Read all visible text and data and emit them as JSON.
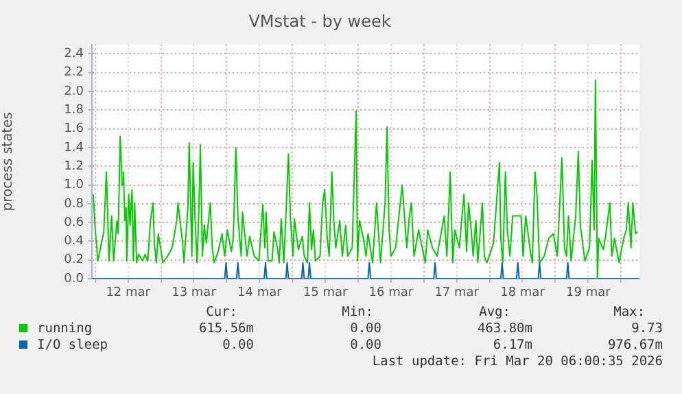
{
  "chart_data": {
    "type": "line",
    "title": "VMstat - by week",
    "ylabel": "process states",
    "xlim": [
      "2026-03-11T22:48",
      "2026-03-20T06:43"
    ],
    "xticks": [
      {
        "value": "2026-03-12T00:00",
        "label": null
      },
      {
        "value": "2026-03-12T12:00",
        "label": "12 mar"
      },
      {
        "value": "2026-03-13T00:00",
        "label": null
      },
      {
        "value": "2026-03-13T12:00",
        "label": "13 mar"
      },
      {
        "value": "2026-03-14T00:00",
        "label": null
      },
      {
        "value": "2026-03-14T12:00",
        "label": "14 mar"
      },
      {
        "value": "2026-03-15T00:00",
        "label": null
      },
      {
        "value": "2026-03-15T12:00",
        "label": "15 mar"
      },
      {
        "value": "2026-03-16T00:00",
        "label": null
      },
      {
        "value": "2026-03-16T12:00",
        "label": "16 mar"
      },
      {
        "value": "2026-03-17T00:00",
        "label": null
      },
      {
        "value": "2026-03-17T12:00",
        "label": "17 mar"
      },
      {
        "value": "2026-03-18T00:00",
        "label": null
      },
      {
        "value": "2026-03-18T12:00",
        "label": "18 mar"
      },
      {
        "value": "2026-03-19T00:00",
        "label": null
      },
      {
        "value": "2026-03-19T12:00",
        "label": "19 mar"
      },
      {
        "value": "2026-03-20T00:00",
        "label": null
      }
    ],
    "ylim": [
      0,
      2.5
    ],
    "yticks": [
      {
        "value": 0,
        "label": "0.0"
      },
      0.2,
      0.4,
      0.6,
      0.8,
      {
        "value": 1,
        "label": "1.0"
      },
      1.2,
      1.4,
      1.6,
      1.8,
      {
        "value": 2,
        "label": "2.0"
      },
      2.2,
      2.4
    ],
    "grid": true,
    "legend": "bottom",
    "marker": "none",
    "line_style": "solid",
    "series": [
      {
        "name": "running",
        "color": "#00cc00",
        "x": [
          "2026-03-11T23:17",
          "2026-03-12T00:00",
          "2026-03-12T00:58",
          "2026-03-12T03:07",
          "2026-03-12T04:05",
          "2026-03-12T05:02",
          "2026-03-12T06:00",
          "2026-03-12T06:43",
          "2026-03-12T07:55",
          "2026-03-12T08:24",
          "2026-03-12T09:07",
          "2026-03-12T09:50",
          "2026-03-12T10:19",
          "2026-03-12T10:48",
          "2026-03-12T11:17",
          "2026-03-12T11:31",
          "2026-03-12T12:14",
          "2026-03-12T12:43",
          "2026-03-12T13:26",
          "2026-03-12T13:55",
          "2026-03-12T14:24",
          "2026-03-12T15:07",
          "2026-03-12T15:50",
          "2026-03-12T17:17",
          "2026-03-12T18:14",
          "2026-03-12T19:12",
          "2026-03-12T20:10",
          "2026-03-12T21:07",
          "2026-03-12T21:36",
          "2026-03-12T22:19",
          "2026-03-12T23:02",
          "2026-03-13T00:43",
          "2026-03-13T02:24",
          "2026-03-13T04:05",
          "2026-03-13T05:46",
          "2026-03-13T06:14",
          "2026-03-13T07:55",
          "2026-03-13T08:24",
          "2026-03-13T09:50",
          "2026-03-13T10:19",
          "2026-03-13T11:17",
          "2026-03-13T11:46",
          "2026-03-13T12:29",
          "2026-03-13T13:12",
          "2026-03-13T13:55",
          "2026-03-13T14:24",
          "2026-03-13T15:07",
          "2026-03-13T15:50",
          "2026-03-13T16:34",
          "2026-03-13T18:00",
          "2026-03-13T18:43",
          "2026-03-13T19:26",
          "2026-03-13T20:53",
          "2026-03-13T22:19",
          "2026-03-13T23:17",
          "2026-03-14T00:14",
          "2026-03-14T01:41",
          "2026-03-14T02:24",
          "2026-03-14T03:22",
          "2026-03-14T04:05",
          "2026-03-14T05:17",
          "2026-03-14T05:46",
          "2026-03-14T07:26",
          "2026-03-14T08:24",
          "2026-03-14T10:05",
          "2026-03-14T11:46",
          "2026-03-14T13:12",
          "2026-03-14T13:55",
          "2026-03-14T14:24",
          "2026-03-14T15:07",
          "2026-03-14T16:34",
          "2026-03-14T17:17",
          "2026-03-14T18:29",
          "2026-03-14T19:12",
          "2026-03-14T19:55",
          "2026-03-14T20:53",
          "2026-03-14T22:34",
          "2026-03-14T23:17",
          "2026-03-15T00:14",
          "2026-03-15T00:43",
          "2026-03-15T02:10",
          "2026-03-15T03:36",
          "2026-03-15T04:19",
          "2026-03-15T05:31",
          "2026-03-15T06:14",
          "2026-03-15T06:58",
          "2026-03-15T07:41",
          "2026-03-15T08:24",
          "2026-03-15T10:05",
          "2026-03-15T11:02",
          "2026-03-15T11:46",
          "2026-03-15T12:43",
          "2026-03-15T13:26",
          "2026-03-15T14:24",
          "2026-03-15T15:07",
          "2026-03-15T15:50",
          "2026-03-15T17:17",
          "2026-03-15T18:14",
          "2026-03-15T19:26",
          "2026-03-15T20:10",
          "2026-03-15T21:50",
          "2026-03-15T23:17",
          "2026-03-15T23:46",
          "2026-03-16T00:29",
          "2026-03-16T01:55",
          "2026-03-16T02:53",
          "2026-03-16T03:36",
          "2026-03-16T05:17",
          "2026-03-16T06:43",
          "2026-03-16T08:10",
          "2026-03-16T09:50",
          "2026-03-16T10:34",
          "2026-03-16T11:17",
          "2026-03-16T12:00",
          "2026-03-16T13:41",
          "2026-03-16T16:05",
          "2026-03-16T17:46",
          "2026-03-16T18:43",
          "2026-03-16T19:26",
          "2026-03-16T20:24",
          "2026-03-16T22:05",
          "2026-03-17T00:29",
          "2026-03-17T01:26",
          "2026-03-17T03:07",
          "2026-03-17T04:48",
          "2026-03-17T07:26",
          "2026-03-17T08:24",
          "2026-03-17T09:36",
          "2026-03-17T10:34",
          "2026-03-17T11:17",
          "2026-03-17T12:58",
          "2026-03-17T13:55",
          "2026-03-17T14:38",
          "2026-03-17T15:36",
          "2026-03-17T16:19",
          "2026-03-17T17:17",
          "2026-03-17T18:00",
          "2026-03-17T18:58",
          "2026-03-17T19:41",
          "2026-03-17T21:22",
          "2026-03-17T22:05",
          "2026-03-17T23:02",
          "2026-03-18T01:26",
          "2026-03-18T03:36",
          "2026-03-18T04:05",
          "2026-03-18T04:48",
          "2026-03-18T05:46",
          "2026-03-18T06:29",
          "2026-03-18T07:26",
          "2026-03-18T08:24",
          "2026-03-18T09:50",
          "2026-03-18T11:31",
          "2026-03-18T12:14",
          "2026-03-18T13:12",
          "2026-03-18T14:53",
          "2026-03-18T15:36",
          "2026-03-18T16:34",
          "2026-03-18T17:17",
          "2026-03-18T18:14",
          "2026-03-18T19:55",
          "2026-03-18T21:36",
          "2026-03-18T23:17",
          "2026-03-19T00:43",
          "2026-03-19T02:24",
          "2026-03-19T03:22",
          "2026-03-19T04:05",
          "2026-03-19T04:48",
          "2026-03-19T05:46",
          "2026-03-19T07:26",
          "2026-03-19T08:24",
          "2026-03-19T09:07",
          "2026-03-19T10:48",
          "2026-03-19T12:29",
          "2026-03-19T13:26",
          "2026-03-19T14:10",
          "2026-03-19T14:38",
          "2026-03-19T15:22",
          "2026-03-19T15:50",
          "2026-03-19T17:31",
          "2026-03-19T18:14",
          "2026-03-19T19:55",
          "2026-03-19T20:38",
          "2026-03-19T21:36",
          "2026-03-19T23:17",
          "2026-03-20T00:58",
          "2026-03-20T01:55",
          "2026-03-20T02:38",
          "2026-03-20T03:36",
          "2026-03-20T04:19",
          "2026-03-20T05:17",
          "2026-03-20T06:00"
        ],
        "values": [
          0.9,
          0.52,
          0.19,
          0.5,
          1.14,
          0.19,
          0.67,
          0.19,
          0.62,
          0.48,
          1.52,
          1.0,
          1.14,
          0.62,
          0.76,
          0.19,
          0.9,
          0.57,
          0.95,
          0.19,
          0.81,
          0.17,
          0.26,
          0.19,
          0.26,
          0.19,
          0.62,
          0.81,
          0.38,
          0.17,
          0.48,
          0.17,
          0.24,
          0.33,
          0.62,
          0.81,
          0.38,
          0.17,
          0.76,
          1.45,
          0.24,
          1.24,
          0.62,
          0.17,
          0.81,
          1.43,
          0.24,
          0.57,
          0.38,
          0.81,
          0.33,
          0.17,
          0.29,
          0.48,
          0.24,
          0.52,
          0.29,
          0.43,
          1.4,
          0.67,
          0.24,
          0.71,
          0.24,
          0.45,
          0.24,
          0.19,
          0.79,
          0.33,
          0.71,
          0.19,
          0.19,
          0.5,
          0.33,
          0.17,
          0.64,
          0.17,
          1.33,
          0.64,
          0.24,
          0.64,
          0.31,
          0.45,
          0.24,
          0.17,
          0.81,
          0.31,
          0.52,
          0.19,
          0.24,
          0.81,
          0.95,
          0.43,
          0.24,
          1.14,
          0.62,
          0.33,
          0.62,
          0.24,
          0.57,
          0.24,
          0.33,
          1.79,
          0.19,
          0.62,
          0.43,
          0.24,
          0.48,
          0.17,
          0.81,
          0.17,
          0.81,
          1.62,
          0.52,
          0.24,
          0.33,
          1.0,
          0.33,
          0.67,
          0.81,
          0.24,
          0.52,
          0.17,
          0.52,
          0.33,
          0.24,
          0.67,
          0.24,
          1.14,
          0.17,
          0.52,
          0.33,
          0.67,
          0.9,
          0.29,
          0.81,
          0.52,
          0.24,
          0.62,
          0.17,
          0.81,
          0.24,
          0.17,
          0.38,
          1.24,
          0.43,
          0.17,
          1.14,
          0.52,
          0.24,
          0.67,
          0.67,
          0.67,
          0.24,
          0.67,
          0.29,
          0.17,
          1.14,
          0.9,
          0.17,
          0.24,
          0.43,
          0.48,
          0.24,
          1.29,
          0.33,
          0.24,
          0.67,
          0.19,
          0.67,
          1.36,
          0.57,
          0.19,
          0.33,
          1.26,
          0.52,
          2.12,
          0.0,
          0.43,
          0.31,
          0.43,
          0.81,
          0.24,
          0.43,
          0.17,
          0.43,
          0.52,
          0.81,
          0.33,
          0.81,
          0.48,
          0.5
        ]
      },
      {
        "name": "I/O sleep",
        "color": "#0066b3",
        "x": [
          "2026-03-11T22:48",
          "2026-03-13T23:17",
          "2026-03-13T23:46",
          "2026-03-14T00:14",
          "2026-03-14T03:36",
          "2026-03-14T04:05",
          "2026-03-14T04:34",
          "2026-03-14T13:41",
          "2026-03-14T14:10",
          "2026-03-14T14:38",
          "2026-03-14T21:36",
          "2026-03-14T22:05",
          "2026-03-14T22:34",
          "2026-03-15T03:22",
          "2026-03-15T03:50",
          "2026-03-15T04:19",
          "2026-03-15T05:46",
          "2026-03-15T06:14",
          "2026-03-15T06:43",
          "2026-03-16T03:36",
          "2026-03-16T04:05",
          "2026-03-16T04:34",
          "2026-03-17T03:36",
          "2026-03-17T04:05",
          "2026-03-17T04:34",
          "2026-03-18T04:05",
          "2026-03-18T04:34",
          "2026-03-18T05:02",
          "2026-03-18T09:50",
          "2026-03-18T10:19",
          "2026-03-18T10:48",
          "2026-03-18T17:46",
          "2026-03-18T18:14",
          "2026-03-18T18:43",
          "2026-03-19T04:05",
          "2026-03-19T04:34",
          "2026-03-19T05:02",
          "2026-03-20T06:29"
        ],
        "values": [
          0,
          0,
          0.17,
          0,
          0,
          0.17,
          0,
          0,
          0.17,
          0,
          0,
          0.17,
          0,
          0,
          0.17,
          0,
          0,
          0.17,
          0,
          0,
          0.17,
          0,
          0,
          0.17,
          0,
          0,
          0.17,
          0,
          0,
          0.17,
          0,
          0,
          0.17,
          0,
          0,
          0.17,
          0,
          0
        ]
      }
    ],
    "annotations": [
      "Cur:",
      "Min:",
      "Avg:",
      "Max:",
      "615.56m",
      "0.00",
      "463.80m",
      "9.73",
      "0.00",
      "0.00",
      "6.17m",
      "976.67m",
      "Last update: Fri Mar 20 06:00:35 2026"
    ]
  }
}
